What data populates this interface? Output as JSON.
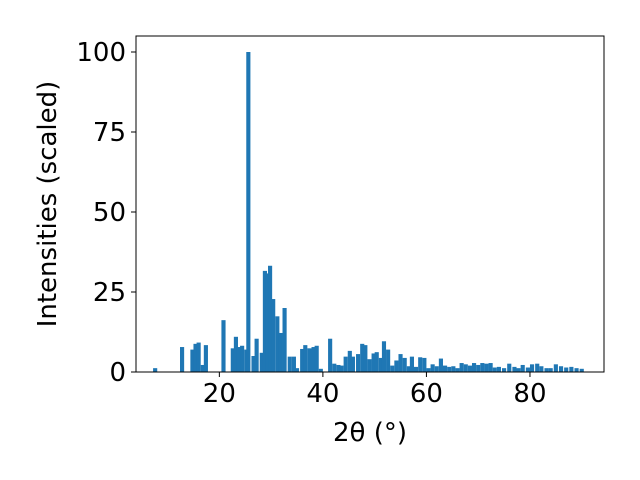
{
  "chart_data": {
    "type": "bar",
    "xlabel": "2θ (°)",
    "ylabel": "Intensities (scaled)",
    "xlim": [
      3.9,
      94.3
    ],
    "ylim": [
      0,
      105
    ],
    "xticks": [
      {
        "value": 20,
        "label": "20"
      },
      {
        "value": 40,
        "label": "40"
      },
      {
        "value": 60,
        "label": "60"
      },
      {
        "value": 80,
        "label": "80"
      }
    ],
    "yticks": [
      {
        "value": 0,
        "label": "0"
      },
      {
        "value": 25,
        "label": "25"
      },
      {
        "value": 50,
        "label": "50"
      },
      {
        "value": 75,
        "label": "75"
      },
      {
        "value": 100,
        "label": "100"
      }
    ],
    "grid": false,
    "bar_color": "#1f77b4",
    "bar_width": 0.8,
    "x": [
      7.6,
      12.8,
      14.8,
      15.4,
      16.0,
      16.8,
      17.4,
      20.8,
      22.6,
      23.2,
      23.8,
      24.4,
      25.2,
      25.6,
      26.6,
      27.2,
      28.2,
      28.8,
      29.4,
      29.8,
      30.4,
      31.2,
      31.8,
      32.6,
      33.6,
      34.4,
      35.0,
      36.0,
      36.6,
      37.4,
      38.2,
      38.8,
      39.6,
      41.4,
      42.2,
      43.0,
      43.6,
      44.4,
      45.2,
      45.8,
      46.8,
      47.6,
      48.2,
      49.0,
      49.8,
      50.4,
      51.2,
      51.8,
      52.6,
      53.4,
      54.2,
      55.0,
      55.8,
      56.6,
      57.2,
      58.0,
      58.8,
      59.6,
      60.4,
      61.2,
      62.0,
      62.8,
      63.6,
      64.4,
      65.2,
      66.0,
      66.8,
      67.6,
      68.4,
      69.2,
      70.0,
      70.8,
      71.6,
      72.4,
      73.2,
      74.0,
      75.0,
      76.0,
      77.0,
      77.8,
      78.6,
      79.6,
      80.4,
      81.4,
      82.2,
      83.2,
      84.0,
      85.0,
      86.0,
      87.0,
      88.0,
      89.0,
      90.0
    ],
    "values": [
      1.2,
      7.8,
      7.0,
      8.8,
      9.2,
      2.2,
      8.4,
      16.2,
      7.4,
      11.0,
      7.8,
      8.2,
      7.0,
      100.0,
      5.0,
      10.4,
      6.0,
      31.6,
      30.8,
      33.2,
      22.8,
      17.4,
      12.2,
      20.0,
      4.8,
      4.8,
      1.2,
      7.2,
      8.4,
      7.4,
      7.8,
      8.2,
      1.0,
      10.4,
      2.6,
      2.2,
      2.0,
      4.8,
      6.6,
      4.8,
      5.6,
      8.8,
      8.4,
      4.0,
      5.8,
      6.2,
      4.4,
      9.6,
      7.0,
      2.0,
      3.6,
      5.6,
      4.4,
      1.8,
      4.8,
      1.6,
      4.6,
      4.4,
      1.2,
      2.4,
      1.8,
      4.2,
      2.0,
      1.6,
      1.8,
      1.2,
      2.8,
      2.4,
      2.0,
      2.8,
      2.2,
      2.8,
      2.6,
      2.8,
      1.4,
      1.6,
      1.2,
      2.6,
      1.6,
      1.2,
      2.2,
      1.4,
      2.4,
      2.6,
      1.8,
      1.2,
      1.2,
      2.4,
      1.8,
      1.4,
      1.6,
      1.2,
      1.0
    ]
  }
}
